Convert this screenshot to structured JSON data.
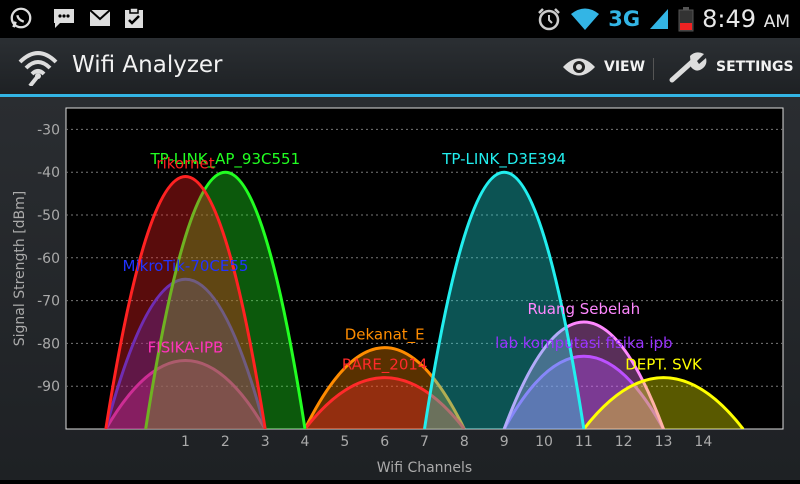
{
  "status_bar": {
    "time": "8:49",
    "ampm": "AM",
    "network": "3G",
    "icons": [
      "whatsapp-icon",
      "chat-icon",
      "gmail-icon",
      "clipboard-icon",
      "alarm-icon",
      "wifi-signal-icon",
      "cell-signal-icon",
      "battery-icon"
    ]
  },
  "app_bar": {
    "title": "Wifi Analyzer",
    "view_label": "VIEW",
    "settings_label": "SETTINGS",
    "accent_color": "#33b5e5"
  },
  "chart_data": {
    "type": "area",
    "xlabel": "Wifi Channels",
    "ylabel": "Signal Strength [dBm]",
    "xlim": [
      -2,
      16
    ],
    "ylim": [
      -100,
      -25
    ],
    "xticks": [
      1,
      2,
      3,
      4,
      5,
      6,
      7,
      8,
      9,
      10,
      11,
      12,
      13,
      14
    ],
    "yticks": [
      -30,
      -40,
      -50,
      -60,
      -70,
      -80,
      -90
    ],
    "grid": true,
    "series": [
      {
        "name": "Dekanat_E",
        "channel": 6,
        "level": -81,
        "color": "#ff8c00"
      },
      {
        "name": "RARE_2014",
        "channel": 6,
        "level": -88,
        "color": "#ff2a2a"
      },
      {
        "name": "lab komputasi fisika ipb",
        "channel": 11,
        "level": -83,
        "color": "#9933ff"
      },
      {
        "name": "Ruang Sebelah",
        "channel": 11,
        "level": -75,
        "color": "#ff88ff"
      },
      {
        "name": "DEPT. SVK",
        "channel": 13,
        "level": -88,
        "color": "#ffff00"
      },
      {
        "name": "TP-LINK_D3E394",
        "channel": 9,
        "level": -40,
        "color": "#22eeee"
      },
      {
        "name": "FISIKA-IPB",
        "channel": 1,
        "level": -84,
        "color": "#ff33bb"
      },
      {
        "name": "MikroTik-70CE55",
        "channel": 1,
        "level": -65,
        "color": "#2233ff"
      },
      {
        "name": "TP-LINK_AP_93C551",
        "channel": 2,
        "level": -40,
        "color": "#22ff22"
      },
      {
        "name": "rikornet",
        "channel": 1,
        "level": -41,
        "color": "#ff2222"
      }
    ]
  }
}
